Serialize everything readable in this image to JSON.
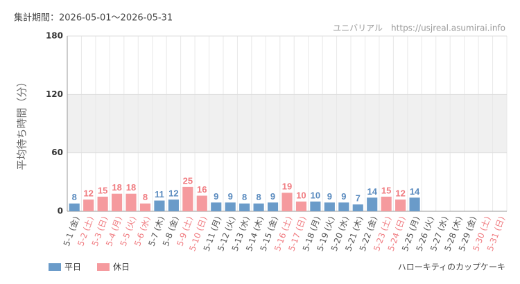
{
  "chart_data": {
    "type": "bar",
    "title": "集計期間：2026-05-01～2026-05-31",
    "source": "ユニバリアル　https://usjreal.asumirai.info",
    "subtitle": "ハローキティのカップケーキ",
    "y_label": "平均待ち時間（分）",
    "categories": [
      "5-1 (金)",
      "5-2 (土)",
      "5-3 (日)",
      "5-4 (月)",
      "5-5 (火)",
      "5-6 (水)",
      "5-7 (木)",
      "5-8 (金)",
      "5-9 (土)",
      "5-10 (日)",
      "5-11 (月)",
      "5-12 (火)",
      "5-13 (水)",
      "5-14 (木)",
      "5-15 (金)",
      "5-16 (土)",
      "5-17 (日)",
      "5-18 (月)",
      "5-19 (火)",
      "5-20 (水)",
      "5-21 (木)",
      "5-22 (金)",
      "5-23 (土)",
      "5-24 (日)",
      "5-25 (月)",
      "5-26 (火)",
      "5-27 (水)",
      "5-28 (木)",
      "5-29 (金)",
      "5-30 (土)",
      "5-31 (日)"
    ],
    "category_colors": [
      "#555",
      "#f07b80",
      "#f07b80",
      "#f07b80",
      "#f07b80",
      "#f07b80",
      "#555",
      "#555",
      "#f07b80",
      "#f07b80",
      "#555",
      "#555",
      "#555",
      "#555",
      "#555",
      "#f07b80",
      "#f07b80",
      "#555",
      "#555",
      "#555",
      "#555",
      "#555",
      "#f07b80",
      "#f07b80",
      "#555",
      "#555",
      "#555",
      "#555",
      "#555",
      "#f07b80",
      "#f07b80"
    ],
    "series": [
      {
        "name": "平日",
        "color": "#6a9bc9",
        "label_color": "#5a8bbf",
        "values": [
          8,
          null,
          null,
          null,
          null,
          null,
          11,
          12,
          null,
          null,
          9,
          9,
          8,
          8,
          9,
          null,
          null,
          10,
          9,
          9,
          7,
          14,
          null,
          null,
          14,
          null,
          null,
          null,
          null,
          null,
          null
        ]
      },
      {
        "name": "休日",
        "color": "#f59a9e",
        "label_color": "#f07b80",
        "values": [
          null,
          12,
          15,
          18,
          18,
          8,
          null,
          null,
          25,
          16,
          null,
          null,
          null,
          null,
          null,
          19,
          10,
          null,
          null,
          null,
          null,
          null,
          15,
          12,
          null,
          null,
          null,
          null,
          null,
          null,
          null
        ]
      }
    ],
    "ylim": [
      0,
      180
    ],
    "yticks": [
      0,
      60,
      120,
      180
    ],
    "grid": true
  }
}
